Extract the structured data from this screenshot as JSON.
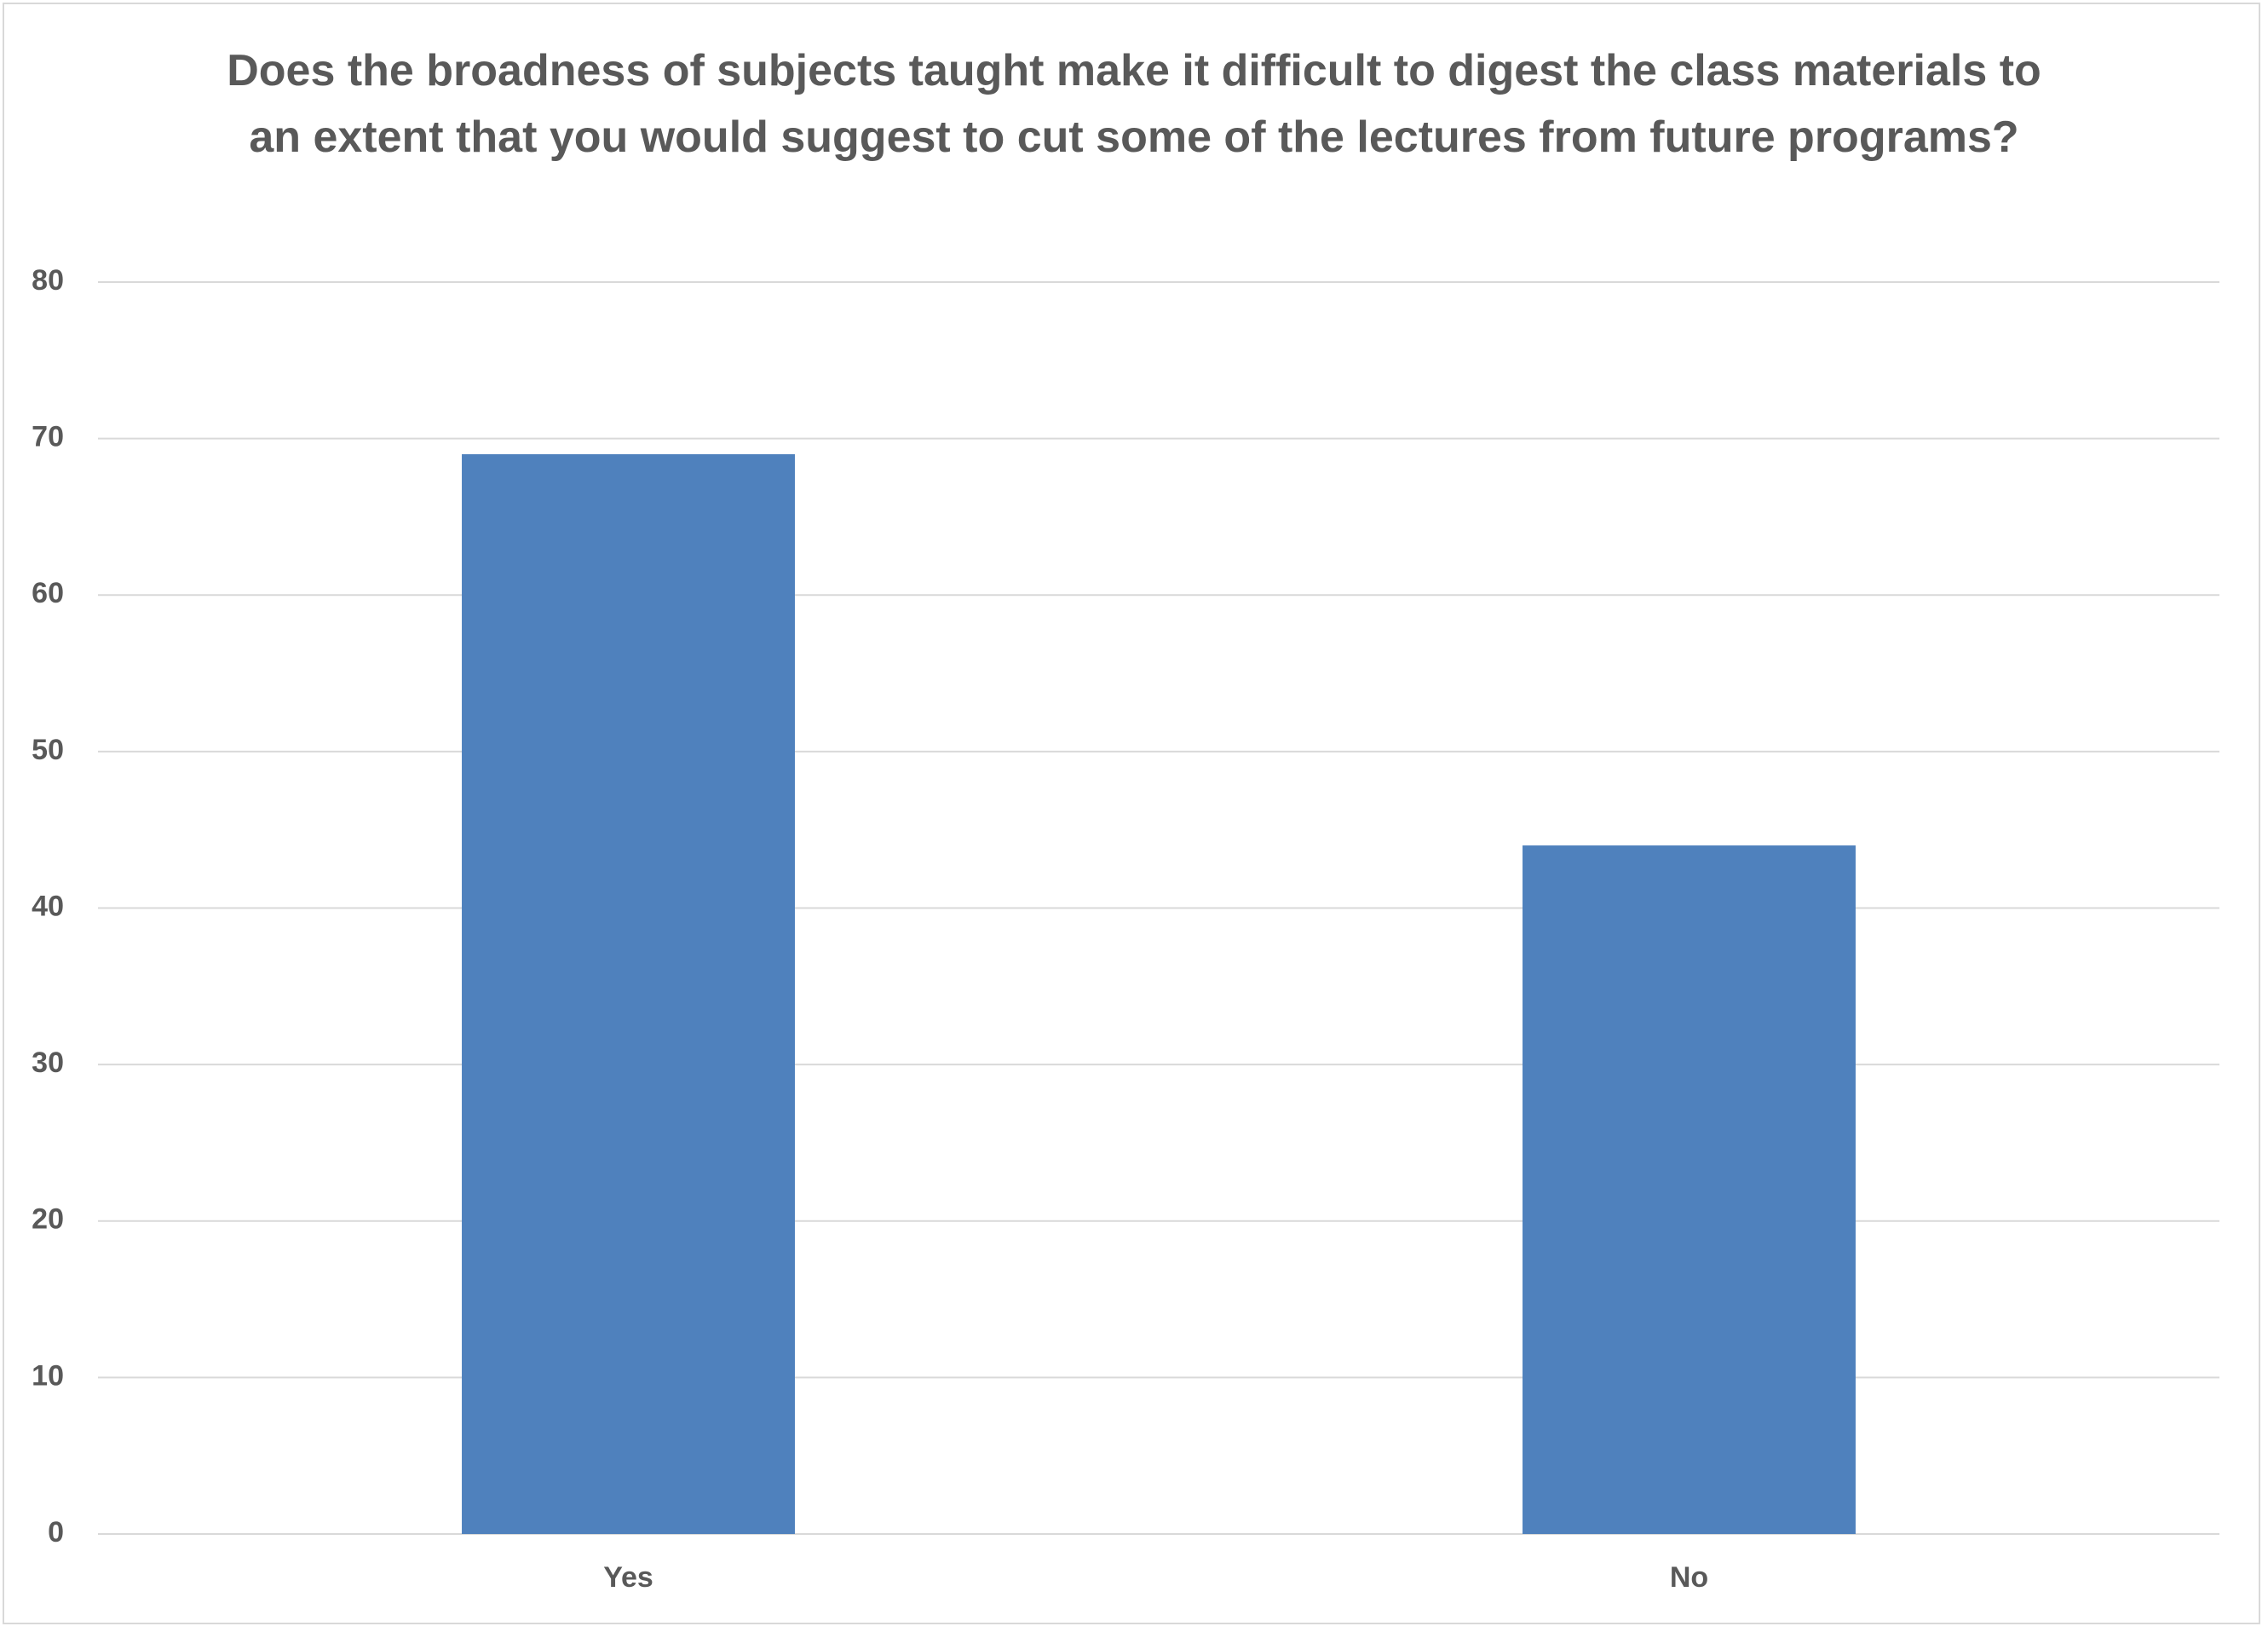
{
  "chart_data": {
    "type": "bar",
    "title": "Does the broadness of subjects taught make it difficult to digest the class materials to an extent that you would suggest to cut some of the lectures from future programs?",
    "categories": [
      "Yes",
      "No"
    ],
    "values": [
      69,
      44
    ],
    "color": "#4f81bd",
    "ylim": [
      0,
      80
    ],
    "yticks": [
      0,
      10,
      20,
      30,
      40,
      50,
      60,
      70,
      80
    ],
    "grid": true
  }
}
